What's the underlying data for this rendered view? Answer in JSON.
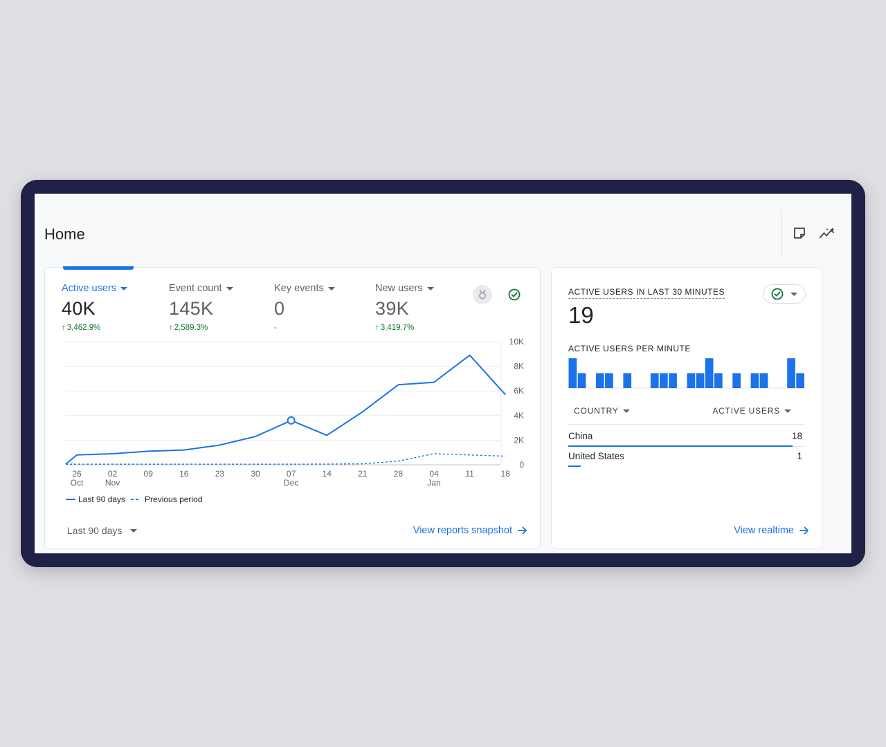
{
  "page": {
    "title": "Home"
  },
  "colors": {
    "accent": "#1a73e8",
    "positive": "#137333",
    "frame": "#1f2147"
  },
  "header_icons": [
    "sticky-note-icon",
    "insights-icon"
  ],
  "metrics": [
    {
      "label": "Active users",
      "value": "40K",
      "change": "3,462.9%",
      "trend": "up",
      "selected": true
    },
    {
      "label": "Event count",
      "value": "145K",
      "change": "2,589.3%",
      "trend": "up",
      "selected": false
    },
    {
      "label": "Key events",
      "value": "0",
      "change": "-",
      "trend": "none",
      "selected": false
    },
    {
      "label": "New users",
      "value": "39K",
      "change": "3,419.7%",
      "trend": "up",
      "selected": false
    }
  ],
  "chart_data": {
    "type": "line",
    "title": "",
    "xlabel": "",
    "ylabel": "",
    "ylim": [
      0,
      10000
    ],
    "y_ticks": [
      "10K",
      "8K",
      "6K",
      "4K",
      "2K",
      "0"
    ],
    "y_tick_values": [
      10000,
      8000,
      6000,
      4000,
      2000,
      0
    ],
    "x_ticks": [
      {
        "top": "26",
        "bottom": "Oct"
      },
      {
        "top": "02",
        "bottom": "Nov"
      },
      {
        "top": "09",
        "bottom": ""
      },
      {
        "top": "16",
        "bottom": ""
      },
      {
        "top": "23",
        "bottom": ""
      },
      {
        "top": "30",
        "bottom": ""
      },
      {
        "top": "07",
        "bottom": "Dec"
      },
      {
        "top": "14",
        "bottom": ""
      },
      {
        "top": "21",
        "bottom": ""
      },
      {
        "top": "28",
        "bottom": ""
      },
      {
        "top": "04",
        "bottom": "Jan"
      },
      {
        "top": "11",
        "bottom": ""
      },
      {
        "top": "18",
        "bottom": ""
      }
    ],
    "grid": true,
    "legend_position": "bottom-left",
    "series": [
      {
        "name": "Last 90 days",
        "style": "solid",
        "x": [
          "Oct 24",
          "Oct 26",
          "Nov 02",
          "Nov 09",
          "Nov 16",
          "Nov 23",
          "Nov 30",
          "Dec 07",
          "Dec 14",
          "Dec 21",
          "Dec 28",
          "Jan 04",
          "Jan 11",
          "Jan 18"
        ],
        "values": [
          50,
          800,
          900,
          1100,
          1200,
          1600,
          2300,
          3600,
          2400,
          4300,
          6500,
          6700,
          8900,
          5700
        ],
        "highlight_index": 7
      },
      {
        "name": "Previous period",
        "style": "dashed",
        "x": [
          "Oct 24",
          "Oct 26",
          "Nov 02",
          "Nov 09",
          "Nov 16",
          "Nov 23",
          "Nov 30",
          "Dec 07",
          "Dec 14",
          "Dec 21",
          "Dec 28",
          "Jan 04",
          "Jan 11",
          "Jan 18"
        ],
        "values": [
          50,
          50,
          50,
          50,
          50,
          50,
          50,
          50,
          60,
          80,
          300,
          900,
          800,
          700
        ]
      }
    ]
  },
  "footer": {
    "range_label": "Last 90 days",
    "snapshot_link": "View reports snapshot"
  },
  "realtime": {
    "title": "ACTIVE USERS IN LAST 30 MINUTES",
    "count": "19",
    "per_minute_label": "ACTIVE USERS PER MINUTE",
    "per_minute_values": [
      2,
      1,
      0,
      1,
      1,
      0,
      1,
      0,
      0,
      1,
      1,
      1,
      0,
      1,
      1,
      2,
      1,
      0,
      1,
      0,
      1,
      1,
      0,
      0,
      2,
      1
    ],
    "col_country": "COUNTRY",
    "col_users": "ACTIVE USERS",
    "rows": [
      {
        "name": "China",
        "value": "18",
        "share": 18
      },
      {
        "name": "United States",
        "value": "1",
        "share": 1
      }
    ],
    "link": "View realtime"
  }
}
